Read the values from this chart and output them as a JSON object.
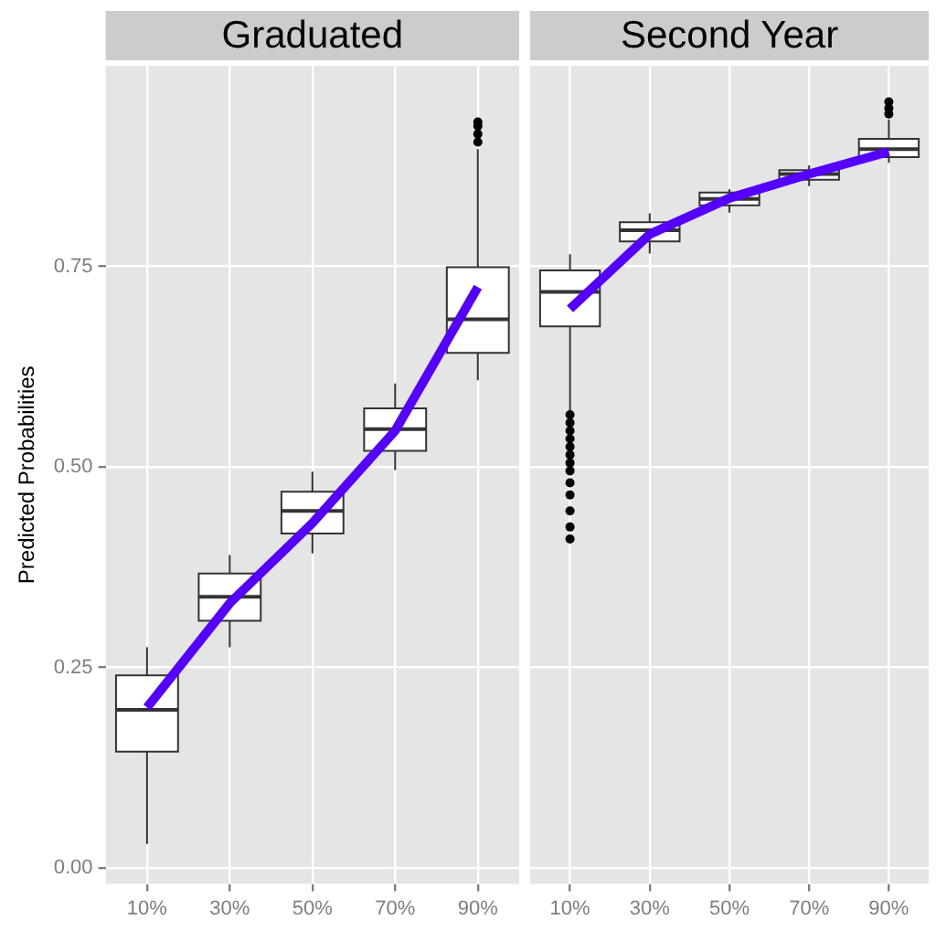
{
  "chart_data": [
    {
      "type": "box",
      "title": "Graduated",
      "ylabel": "Predicted Probabilities",
      "categories": [
        "10%",
        "30%",
        "50%",
        "70%",
        "90%"
      ],
      "boxes": [
        {
          "low": 0.03,
          "q1": 0.145,
          "median": 0.197,
          "q3": 0.24,
          "high": 0.275
        },
        {
          "low": 0.275,
          "q1": 0.308,
          "median": 0.338,
          "q3": 0.367,
          "high": 0.39
        },
        {
          "low": 0.392,
          "q1": 0.417,
          "median": 0.445,
          "q3": 0.469,
          "high": 0.494
        },
        {
          "low": 0.496,
          "q1": 0.52,
          "median": 0.547,
          "q3": 0.573,
          "high": 0.604
        },
        {
          "low": 0.608,
          "q1": 0.642,
          "median": 0.684,
          "q3": 0.749,
          "high": 0.896,
          "outliers": [
            0.905,
            0.915,
            0.925,
            0.93
          ]
        }
      ],
      "series": [
        {
          "type": "line",
          "color": "#5500ff",
          "values": [
            0.2,
            0.33,
            0.43,
            0.545,
            0.724
          ]
        }
      ],
      "ylim": [
        -0.02,
        1.0
      ],
      "yticks": [
        {
          "value": 0,
          "label": "0.00"
        },
        {
          "value": 0.25,
          "label": "0.25"
        },
        {
          "value": 0.5,
          "label": "0.50"
        },
        {
          "value": 0.75,
          "label": "0.75"
        }
      ],
      "grid": true
    },
    {
      "type": "box",
      "title": "Second Year",
      "categories": [
        "10%",
        "30%",
        "50%",
        "70%",
        "90%"
      ],
      "boxes": [
        {
          "low": 0.57,
          "q1": 0.675,
          "median": 0.718,
          "q3": 0.745,
          "high": 0.765,
          "outliers": [
            0.41,
            0.425,
            0.445,
            0.465,
            0.48,
            0.495,
            0.505,
            0.515,
            0.525,
            0.535,
            0.545,
            0.555,
            0.565
          ]
        },
        {
          "low": 0.766,
          "q1": 0.781,
          "median": 0.795,
          "q3": 0.805,
          "high": 0.816
        },
        {
          "low": 0.817,
          "q1": 0.826,
          "median": 0.834,
          "q3": 0.842,
          "high": 0.846
        },
        {
          "low": 0.85,
          "q1": 0.858,
          "median": 0.865,
          "q3": 0.87,
          "high": 0.876
        },
        {
          "low": 0.879,
          "q1": 0.886,
          "median": 0.896,
          "q3": 0.909,
          "high": 0.933,
          "outliers": [
            0.94,
            0.947,
            0.955
          ]
        }
      ],
      "series": [
        {
          "type": "line",
          "color": "#5500ff",
          "values": [
            0.697,
            0.79,
            0.835,
            0.865,
            0.893
          ]
        }
      ],
      "ylim": [
        -0.02,
        1.0
      ],
      "yticks": [
        0,
        0.25,
        0.5,
        0.75
      ],
      "grid": true,
      "tick_labels": "x"
    }
  ]
}
